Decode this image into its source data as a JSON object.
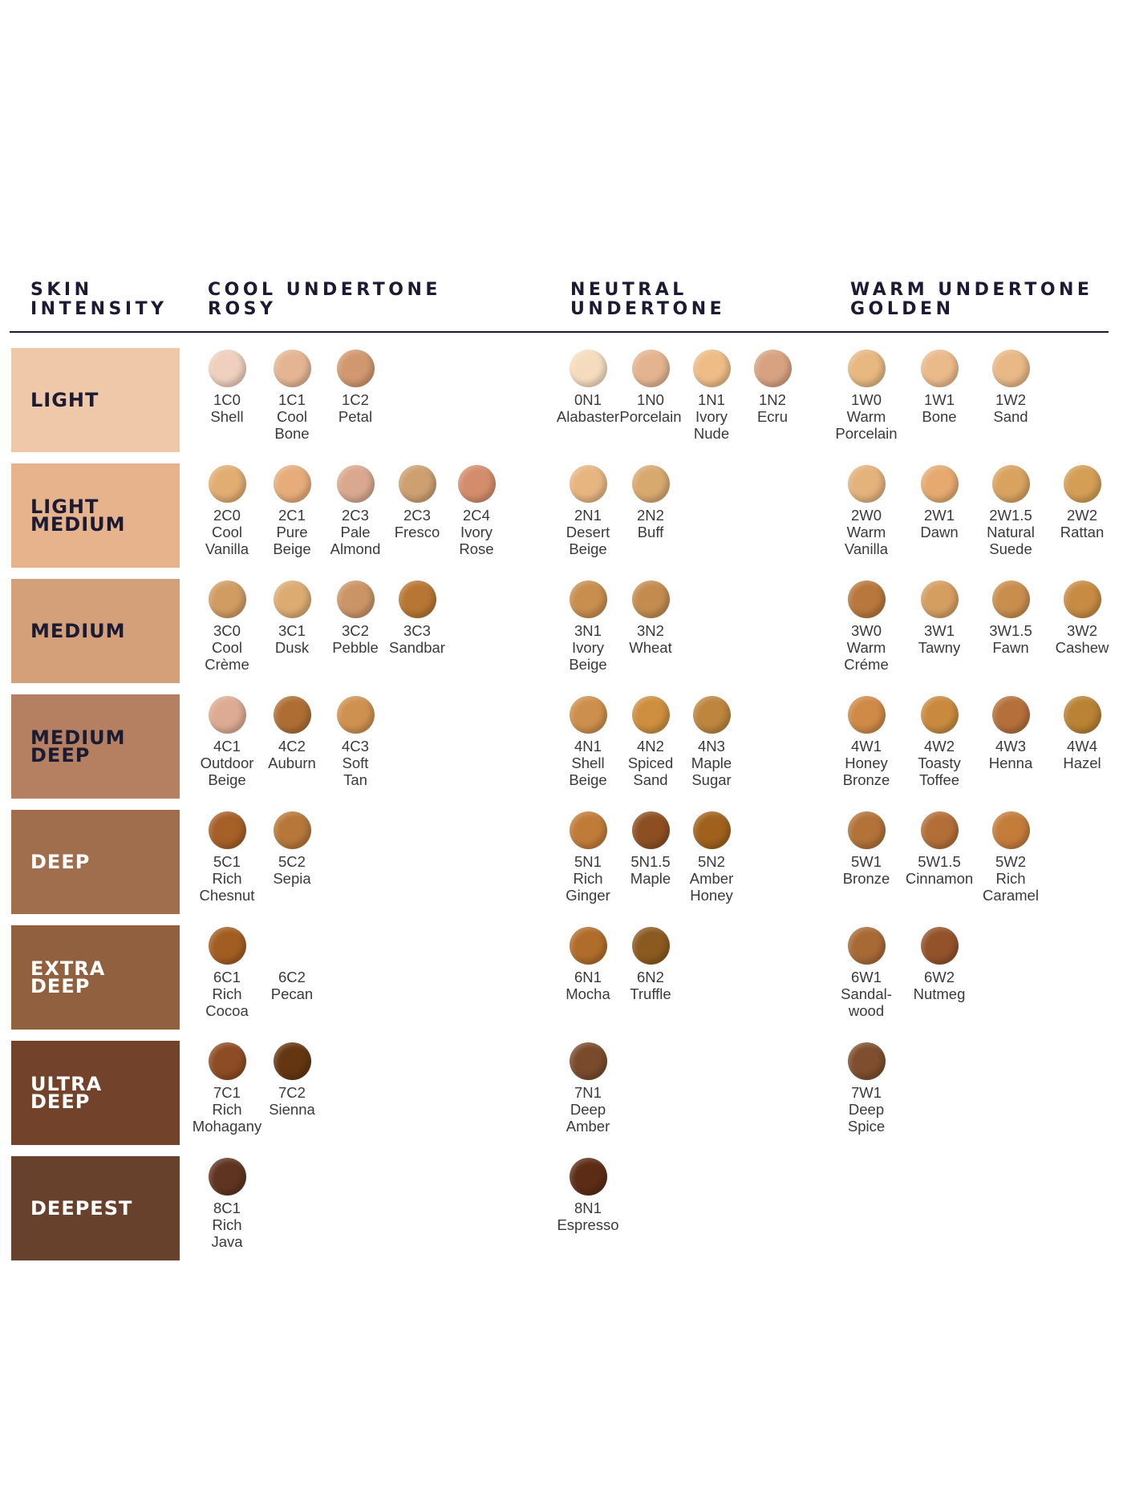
{
  "headers": {
    "skin_intensity": [
      "SKIN",
      "INTENSITY"
    ],
    "cool": [
      "COOL UNDERTONE",
      "ROSY"
    ],
    "neutral": [
      "NEUTRAL",
      "UNDERTONE"
    ],
    "warm": [
      "WARM UNDERTONE",
      "GOLDEN"
    ]
  },
  "undertones": [
    "cool",
    "neutral",
    "warm"
  ],
  "rows": [
    {
      "label": [
        "LIGHT"
      ],
      "band_color": "#efc8a9",
      "text_color": "#1b1b33",
      "cool": [
        {
          "code": "1C0",
          "name": [
            "Shell"
          ],
          "color": "#efcfbd"
        },
        {
          "code": "1C1",
          "name": [
            "Cool",
            "Bone"
          ],
          "color": "#e5b593"
        },
        {
          "code": "1C2",
          "name": [
            "Petal"
          ],
          "color": "#d1986f"
        }
      ],
      "neutral": [
        {
          "code": "0N1",
          "name": [
            "Alabaster"
          ],
          "color": "#f6dcbf"
        },
        {
          "code": "1N0",
          "name": [
            "Porcelain"
          ],
          "color": "#e4b490"
        },
        {
          "code": "1N1",
          "name": [
            "Ivory",
            "Nude"
          ],
          "color": "#eebc86"
        },
        {
          "code": "1N2",
          "name": [
            "Ecru"
          ],
          "color": "#d8a282"
        }
      ],
      "warm": [
        {
          "code": "1W0",
          "name": [
            "Warm",
            "Porcelain"
          ],
          "color": "#e7b880"
        },
        {
          "code": "1W1",
          "name": [
            "Bone"
          ],
          "color": "#ebba8b"
        },
        {
          "code": "1W2",
          "name": [
            "Sand"
          ],
          "color": "#e8b886"
        }
      ]
    },
    {
      "label": [
        "LIGHT",
        "MEDIUM"
      ],
      "band_color": "#e7b38c",
      "text_color": "#1b1b33",
      "cool": [
        {
          "code": "2C0",
          "name": [
            "Cool",
            "Vanilla"
          ],
          "color": "#e2ad72"
        },
        {
          "code": "2C1",
          "name": [
            "Pure",
            "Beige"
          ],
          "color": "#e7ac7a"
        },
        {
          "code": "2C3",
          "name": [
            "Pale",
            "Almond"
          ],
          "color": "#daa88e"
        },
        {
          "code": "2C3",
          "name": [
            "Fresco"
          ],
          "color": "#ce9f71"
        },
        {
          "code": "2C4",
          "name": [
            "Ivory",
            "Rose"
          ],
          "color": "#d48d6c"
        }
      ],
      "neutral": [
        {
          "code": "2N1",
          "name": [
            "Desert",
            "Beige"
          ],
          "color": "#e7b580"
        },
        {
          "code": "2N2",
          "name": [
            "Buff"
          ],
          "color": "#d8a96f"
        }
      ],
      "warm": [
        {
          "code": "2W0",
          "name": [
            "Warm",
            "Vanilla"
          ],
          "color": "#e4b27b"
        },
        {
          "code": "2W1",
          "name": [
            "Dawn"
          ],
          "color": "#e6aa70"
        },
        {
          "code": "2W1.5",
          "name": [
            "Natural",
            "Suede"
          ],
          "color": "#d9a35f"
        },
        {
          "code": "2W2",
          "name": [
            "Rattan"
          ],
          "color": "#d49e55"
        }
      ]
    },
    {
      "label": [
        "MEDIUM"
      ],
      "band_color": "#d4a07a",
      "text_color": "#1b1b33",
      "cool": [
        {
          "code": "3C0",
          "name": [
            "Cool",
            "Crème"
          ],
          "color": "#d09c62"
        },
        {
          "code": "3C1",
          "name": [
            "Dusk"
          ],
          "color": "#dcab72"
        },
        {
          "code": "3C2",
          "name": [
            "Pebble"
          ],
          "color": "#cb9466"
        },
        {
          "code": "3C3",
          "name": [
            "Sandbar"
          ],
          "color": "#b77633"
        }
      ],
      "neutral": [
        {
          "code": "3N1",
          "name": [
            "Ivory",
            "Beige"
          ],
          "color": "#c88e4e"
        },
        {
          "code": "3N2",
          "name": [
            "Wheat"
          ],
          "color": "#c48b4f"
        }
      ],
      "warm": [
        {
          "code": "3W0",
          "name": [
            "Warm",
            "Créme"
          ],
          "color": "#b8773c"
        },
        {
          "code": "3W1",
          "name": [
            "Tawny"
          ],
          "color": "#d59e61"
        },
        {
          "code": "3W1.5",
          "name": [
            "Fawn"
          ],
          "color": "#c98e4e"
        },
        {
          "code": "3W2",
          "name": [
            "Cashew"
          ],
          "color": "#c78b43"
        }
      ]
    },
    {
      "label": [
        "MEDIUM",
        "DEEP"
      ],
      "band_color": "#b58062",
      "text_color": "#1b1b33",
      "cool": [
        {
          "code": "4C1",
          "name": [
            "Outdoor",
            "Beige"
          ],
          "color": "#ddab93"
        },
        {
          "code": "4C2",
          "name": [
            "Auburn"
          ],
          "color": "#ae6e33"
        },
        {
          "code": "4C3",
          "name": [
            "Soft",
            "Tan"
          ],
          "color": "#cf914f"
        }
      ],
      "neutral": [
        {
          "code": "4N1",
          "name": [
            "Shell",
            "Beige"
          ],
          "color": "#cd8f4d"
        },
        {
          "code": "4N2",
          "name": [
            "Spiced",
            "Sand"
          ],
          "color": "#cd8e3f"
        },
        {
          "code": "4N3",
          "name": [
            "Maple",
            "Sugar"
          ],
          "color": "#bd853e"
        }
      ],
      "warm": [
        {
          "code": "4W1",
          "name": [
            "Honey",
            "Bronze"
          ],
          "color": "#cf8a47"
        },
        {
          "code": "4W2",
          "name": [
            "Toasty",
            "Toffee"
          ],
          "color": "#c98a3e"
        },
        {
          "code": "4W3",
          "name": [
            "Henna"
          ],
          "color": "#b56f3b"
        },
        {
          "code": "4W4",
          "name": [
            "Hazel"
          ],
          "color": "#b98234"
        }
      ]
    },
    {
      "label": [
        "DEEP"
      ],
      "band_color": "#a06e4d",
      "text_color": "#ffffff",
      "cool": [
        {
          "code": "5C1",
          "name": [
            "Rich",
            "Chesnut"
          ],
          "color": "#a55f27"
        },
        {
          "code": "5C2",
          "name": [
            "Sepia"
          ],
          "color": "#b7773a"
        }
      ],
      "neutral": [
        {
          "code": "5N1",
          "name": [
            "Rich",
            "Ginger"
          ],
          "color": "#c07b39"
        },
        {
          "code": "5N1.5",
          "name": [
            "Maple"
          ],
          "color": "#8d4f22"
        },
        {
          "code": "5N2",
          "name": [
            "Amber",
            "Honey"
          ],
          "color": "#a0611d"
        }
      ],
      "warm": [
        {
          "code": "5W1",
          "name": [
            "Bronze"
          ],
          "color": "#b27238"
        },
        {
          "code": "5W1.5",
          "name": [
            "Cinnamon"
          ],
          "color": "#b36e38"
        },
        {
          "code": "5W2",
          "name": [
            "Rich",
            "Caramel"
          ],
          "color": "#c47c3a"
        }
      ]
    },
    {
      "label": [
        "EXTRA",
        "DEEP"
      ],
      "band_color": "#91603f",
      "text_color": "#ffffff",
      "cool": [
        {
          "code": "6C1",
          "name": [
            "Rich",
            "Cocoa"
          ],
          "color": "#a25e22"
        },
        {
          "code": "6C2",
          "name": [
            "Pecan"
          ],
          "color": ""
        }
      ],
      "neutral": [
        {
          "code": "6N1",
          "name": [
            "Mocha"
          ],
          "color": "#b06c2a"
        },
        {
          "code": "6N2",
          "name": [
            "Truffle"
          ],
          "color": "#8b5a20"
        }
      ],
      "warm": [
        {
          "code": "6W1",
          "name": [
            "Sandal-",
            "wood"
          ],
          "color": "#a86a35"
        },
        {
          "code": "6W2",
          "name": [
            "Nutmeg"
          ],
          "color": "#94522b"
        }
      ]
    },
    {
      "label": [
        "ULTRA",
        "DEEP"
      ],
      "band_color": "#72422a",
      "text_color": "#ffffff",
      "cool": [
        {
          "code": "7C1",
          "name": [
            "Rich",
            "Mohagany"
          ],
          "color": "#8d4c23"
        },
        {
          "code": "7C2",
          "name": [
            "Sienna"
          ],
          "color": "#643611"
        }
      ],
      "neutral": [
        {
          "code": "7N1",
          "name": [
            "Deep",
            "Amber"
          ],
          "color": "#7a4a2c"
        }
      ],
      "warm": [
        {
          "code": "7W1",
          "name": [
            "Deep",
            "Spice"
          ],
          "color": "#7e4e2e"
        }
      ]
    },
    {
      "label": [
        "DEEPEST"
      ],
      "band_color": "#68412d",
      "text_color": "#ffffff",
      "cool": [
        {
          "code": "8C1",
          "name": [
            "Rich",
            "Java"
          ],
          "color": "#5f3421"
        }
      ],
      "neutral": [
        {
          "code": "8N1",
          "name": [
            "Espresso"
          ],
          "color": "#5c2c16"
        }
      ],
      "warm": []
    }
  ]
}
